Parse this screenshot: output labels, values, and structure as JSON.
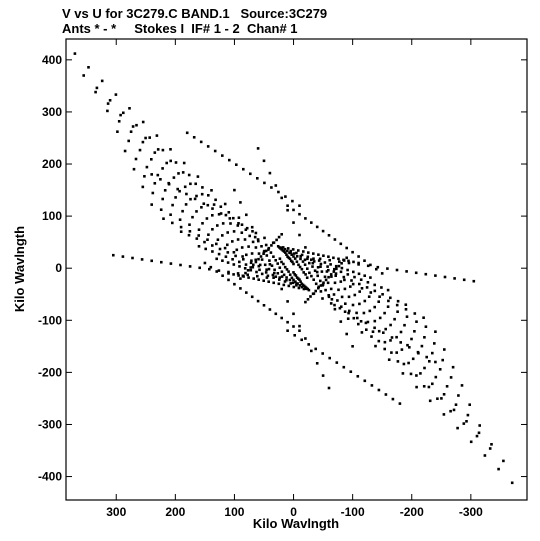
{
  "header": {
    "title_line1": "V vs U for 3C279.C BAND.1   Source:3C279",
    "title_line2": "Ants * - *     Stokes I  IF# 1 - 2  Chan# 1"
  },
  "chart_data": {
    "type": "scatter",
    "title": "V vs U for 3C279.C BAND.1   Source:3C279",
    "subtitle": "Ants * - *     Stokes I  IF# 1 - 2  Chan# 1",
    "xlabel": "Kilo Wavlngth",
    "ylabel": "Kilo Wavlngth",
    "xlim": [
      385,
      -395
    ],
    "ylim": [
      -445,
      440
    ],
    "x_ticks": [
      300,
      200,
      100,
      0,
      -100,
      -200,
      -300
    ],
    "x_tick_labels": [
      "300",
      "200",
      "100",
      "0",
      "-100",
      "-200",
      "-300"
    ],
    "y_ticks": [
      400,
      300,
      200,
      100,
      0,
      -100,
      -200,
      -300,
      -400
    ],
    "y_tick_labels": [
      "400",
      "300",
      "200",
      "100",
      "0",
      "-100",
      "-200",
      "-300",
      "-400"
    ],
    "marker_color": "#000000",
    "tracks": [
      {
        "u": [
          370,
          0
        ],
        "v": [
          412,
          -8
        ]
      },
      {
        "u": [
          355,
          -2
        ],
        "v": [
          370,
          -12
        ]
      },
      {
        "u": [
          335,
          -4
        ],
        "v": [
          338,
          -14
        ]
      },
      {
        "u": [
          315,
          -6
        ],
        "v": [
          302,
          -18
        ]
      },
      {
        "u": [
          298,
          -8
        ],
        "v": [
          262,
          -20
        ]
      },
      {
        "u": [
          285,
          -10
        ],
        "v": [
          225,
          -22
        ]
      },
      {
        "u": [
          270,
          -12
        ],
        "v": [
          190,
          -26
        ]
      },
      {
        "u": [
          255,
          -14
        ],
        "v": [
          156,
          -30
        ]
      },
      {
        "u": [
          240,
          -16
        ],
        "v": [
          122,
          -32
        ]
      },
      {
        "u": [
          220,
          -18
        ],
        "v": [
          95,
          -34
        ]
      },
      {
        "u": [
          190,
          -20
        ],
        "v": [
          70,
          -36
        ]
      },
      {
        "u": [
          160,
          -22
        ],
        "v": [
          42,
          -38
        ]
      },
      {
        "u": [
          130,
          -24
        ],
        "v": [
          18,
          -40
        ]
      },
      {
        "u": [
          110,
          -26
        ],
        "v": [
          -10,
          -42
        ]
      },
      {
        "u": [
          20,
          90
        ],
        "v": [
          65,
          -20
        ]
      },
      {
        "u": [
          305,
          45
        ],
        "v": [
          25,
          -18
        ]
      },
      {
        "u": [
          0,
          -370
        ],
        "v": [
          8,
          -412
        ]
      },
      {
        "u": [
          2,
          -355
        ],
        "v": [
          12,
          -370
        ]
      },
      {
        "u": [
          4,
          -335
        ],
        "v": [
          14,
          -338
        ]
      },
      {
        "u": [
          6,
          -315
        ],
        "v": [
          18,
          -302
        ]
      },
      {
        "u": [
          8,
          -298
        ],
        "v": [
          20,
          -262
        ]
      },
      {
        "u": [
          10,
          -285
        ],
        "v": [
          22,
          -225
        ]
      },
      {
        "u": [
          12,
          -270
        ],
        "v": [
          26,
          -190
        ]
      },
      {
        "u": [
          14,
          -255
        ],
        "v": [
          30,
          -156
        ]
      },
      {
        "u": [
          16,
          -240
        ],
        "v": [
          32,
          -122
        ]
      },
      {
        "u": [
          18,
          -220
        ],
        "v": [
          34,
          -95
        ]
      },
      {
        "u": [
          20,
          -190
        ],
        "v": [
          36,
          -70
        ]
      },
      {
        "u": [
          22,
          -160
        ],
        "v": [
          38,
          -42
        ]
      },
      {
        "u": [
          24,
          -130
        ],
        "v": [
          40,
          -18
        ]
      },
      {
        "u": [
          26,
          -110
        ],
        "v": [
          42,
          10
        ]
      },
      {
        "u": [
          -20,
          -90
        ],
        "v": [
          -65,
          20
        ]
      },
      {
        "u": [
          -305,
          -45
        ],
        "v": [
          -25,
          18
        ]
      },
      {
        "u": [
          180,
          -10
        ],
        "v": [
          260,
          120
        ]
      },
      {
        "u": [
          10,
          -150
        ],
        "v": [
          120,
          -10
        ]
      },
      {
        "u": [
          -180,
          10
        ],
        "v": [
          -260,
          -120
        ]
      },
      {
        "u": [
          -10,
          150
        ],
        "v": [
          -120,
          10
        ]
      },
      {
        "u": [
          240,
          5
        ],
        "v": [
          180,
          30
        ]
      },
      {
        "u": [
          -240,
          -5
        ],
        "v": [
          -180,
          -30
        ]
      },
      {
        "u": [
          100,
          -60
        ],
        "v": [
          150,
          -230
        ]
      },
      {
        "u": [
          -100,
          60
        ],
        "v": [
          -150,
          230
        ]
      }
    ],
    "points_per_track": 16
  }
}
